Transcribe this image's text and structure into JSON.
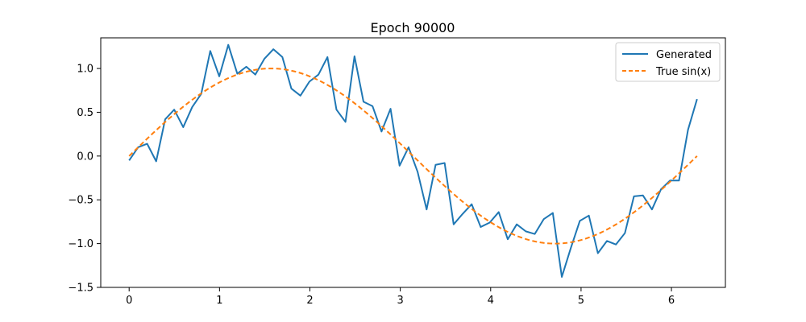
{
  "chart_data": {
    "type": "line",
    "title": "Epoch 90000",
    "xlabel": "",
    "ylabel": "",
    "xlim": [
      -0.314,
      6.597
    ],
    "ylim": [
      -1.5,
      1.35
    ],
    "xticks": [
      0,
      1,
      2,
      3,
      4,
      5,
      6
    ],
    "xtick_labels": [
      "0",
      "1",
      "2",
      "3",
      "4",
      "5",
      "6"
    ],
    "yticks": [
      -1.5,
      -1.0,
      -0.5,
      0.0,
      0.5,
      1.0
    ],
    "ytick_labels": [
      "−1.5",
      "−1.0",
      "−0.5",
      "0.0",
      "0.5",
      "1.0"
    ],
    "grid": false,
    "legend": "top-right",
    "series": [
      {
        "name": "Generated",
        "color": "#1f77b4",
        "style": "solid",
        "x": [
          0.0,
          0.0997,
          0.1995,
          0.2992,
          0.3989,
          0.4987,
          0.5984,
          0.6981,
          0.7979,
          0.8976,
          0.9973,
          1.0971,
          1.1968,
          1.2965,
          1.3963,
          1.496,
          1.5957,
          1.6955,
          1.7952,
          1.8949,
          1.9947,
          2.0944,
          2.1941,
          2.2939,
          2.3936,
          2.4933,
          2.5931,
          2.6928,
          2.7925,
          2.8923,
          2.992,
          3.0917,
          3.1915,
          3.2912,
          3.3909,
          3.4907,
          3.5904,
          3.6901,
          3.7899,
          3.8896,
          3.9893,
          4.0891,
          4.1888,
          4.2885,
          4.3883,
          4.488,
          4.5877,
          4.6875,
          4.7872,
          4.8869,
          4.9867,
          5.0864,
          5.1861,
          5.2859,
          5.3856,
          5.4853,
          5.5851,
          5.6848,
          5.7845,
          5.8843,
          5.984,
          6.0837,
          6.1835,
          6.2832
        ],
        "y": [
          -0.05,
          0.1,
          0.14,
          -0.06,
          0.42,
          0.53,
          0.33,
          0.56,
          0.71,
          1.2,
          0.91,
          1.27,
          0.94,
          1.02,
          0.93,
          1.11,
          1.22,
          1.13,
          0.77,
          0.69,
          0.85,
          0.93,
          1.13,
          0.53,
          0.39,
          1.14,
          0.62,
          0.57,
          0.28,
          0.54,
          -0.11,
          0.1,
          -0.18,
          -0.61,
          -0.1,
          -0.08,
          -0.78,
          -0.66,
          -0.55,
          -0.81,
          -0.76,
          -0.64,
          -0.95,
          -0.78,
          -0.86,
          -0.89,
          -0.72,
          -0.65,
          -1.38,
          -1.05,
          -0.74,
          -0.68,
          -1.11,
          -0.97,
          -1.01,
          -0.88,
          -0.46,
          -0.45,
          -0.61,
          -0.38,
          -0.28,
          -0.28,
          0.3,
          0.65
        ]
      },
      {
        "name": "True sin(x)",
        "color": "#ff7f0e",
        "style": "dashed",
        "function": "sin",
        "x_range": [
          0,
          6.2832
        ]
      }
    ]
  }
}
